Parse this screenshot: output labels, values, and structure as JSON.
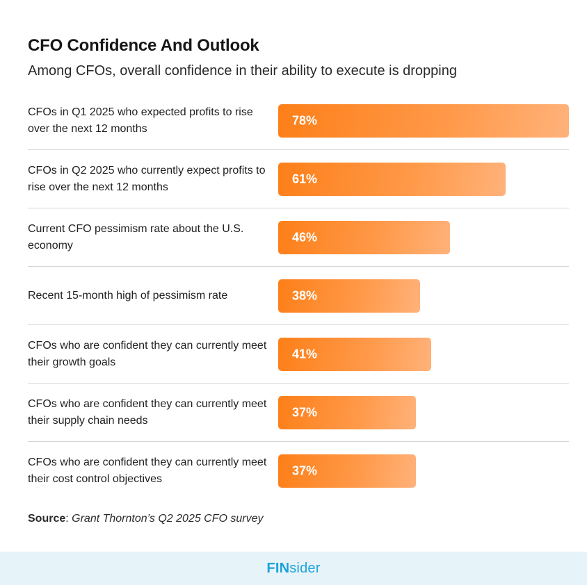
{
  "title": "CFO Confidence And Outlook",
  "subtitle": "Among CFOs, overall confidence in their ability to execute is dropping",
  "chart_data": {
    "type": "bar",
    "orientation": "horizontal",
    "title": "CFO Confidence And Outlook",
    "subtitle": "Among CFOs, overall confidence in their ability to execute is dropping",
    "xlim": [
      0,
      78
    ],
    "unit": "%",
    "bars": [
      {
        "label": "CFOs in Q1 2025 who expected profits to rise over the next 12 months",
        "value": 78,
        "display": "78%"
      },
      {
        "label": "CFOs in Q2 2025 who currently expect profits to rise over the next 12 months",
        "value": 61,
        "display": "61%"
      },
      {
        "label": "Current CFO pessimism rate about the U.S. economy",
        "value": 46,
        "display": "46%"
      },
      {
        "label": "Recent 15-month high of pessimism rate",
        "value": 38,
        "display": "38%"
      },
      {
        "label": "CFOs who are confident they can currently meet their growth goals",
        "value": 41,
        "display": "41%"
      },
      {
        "label": "CFOs who are confident they can currently meet their supply chain needs",
        "value": 37,
        "display": "37%"
      },
      {
        "label": "CFOs who are confident they can currently meet their cost control objectives",
        "value": 37,
        "display": "37%"
      }
    ]
  },
  "source": {
    "label": "Source",
    "sep": ": ",
    "text": "Grant Thornton’s Q2 2025 CFO survey"
  },
  "footer": {
    "brand_bold": "FIN",
    "brand_light": "sider"
  },
  "colors": {
    "bar_start": "#fd7f18",
    "bar_end": "#ffb27a",
    "footer_bg": "#e6f4fa",
    "brand": "#1ea1db"
  }
}
